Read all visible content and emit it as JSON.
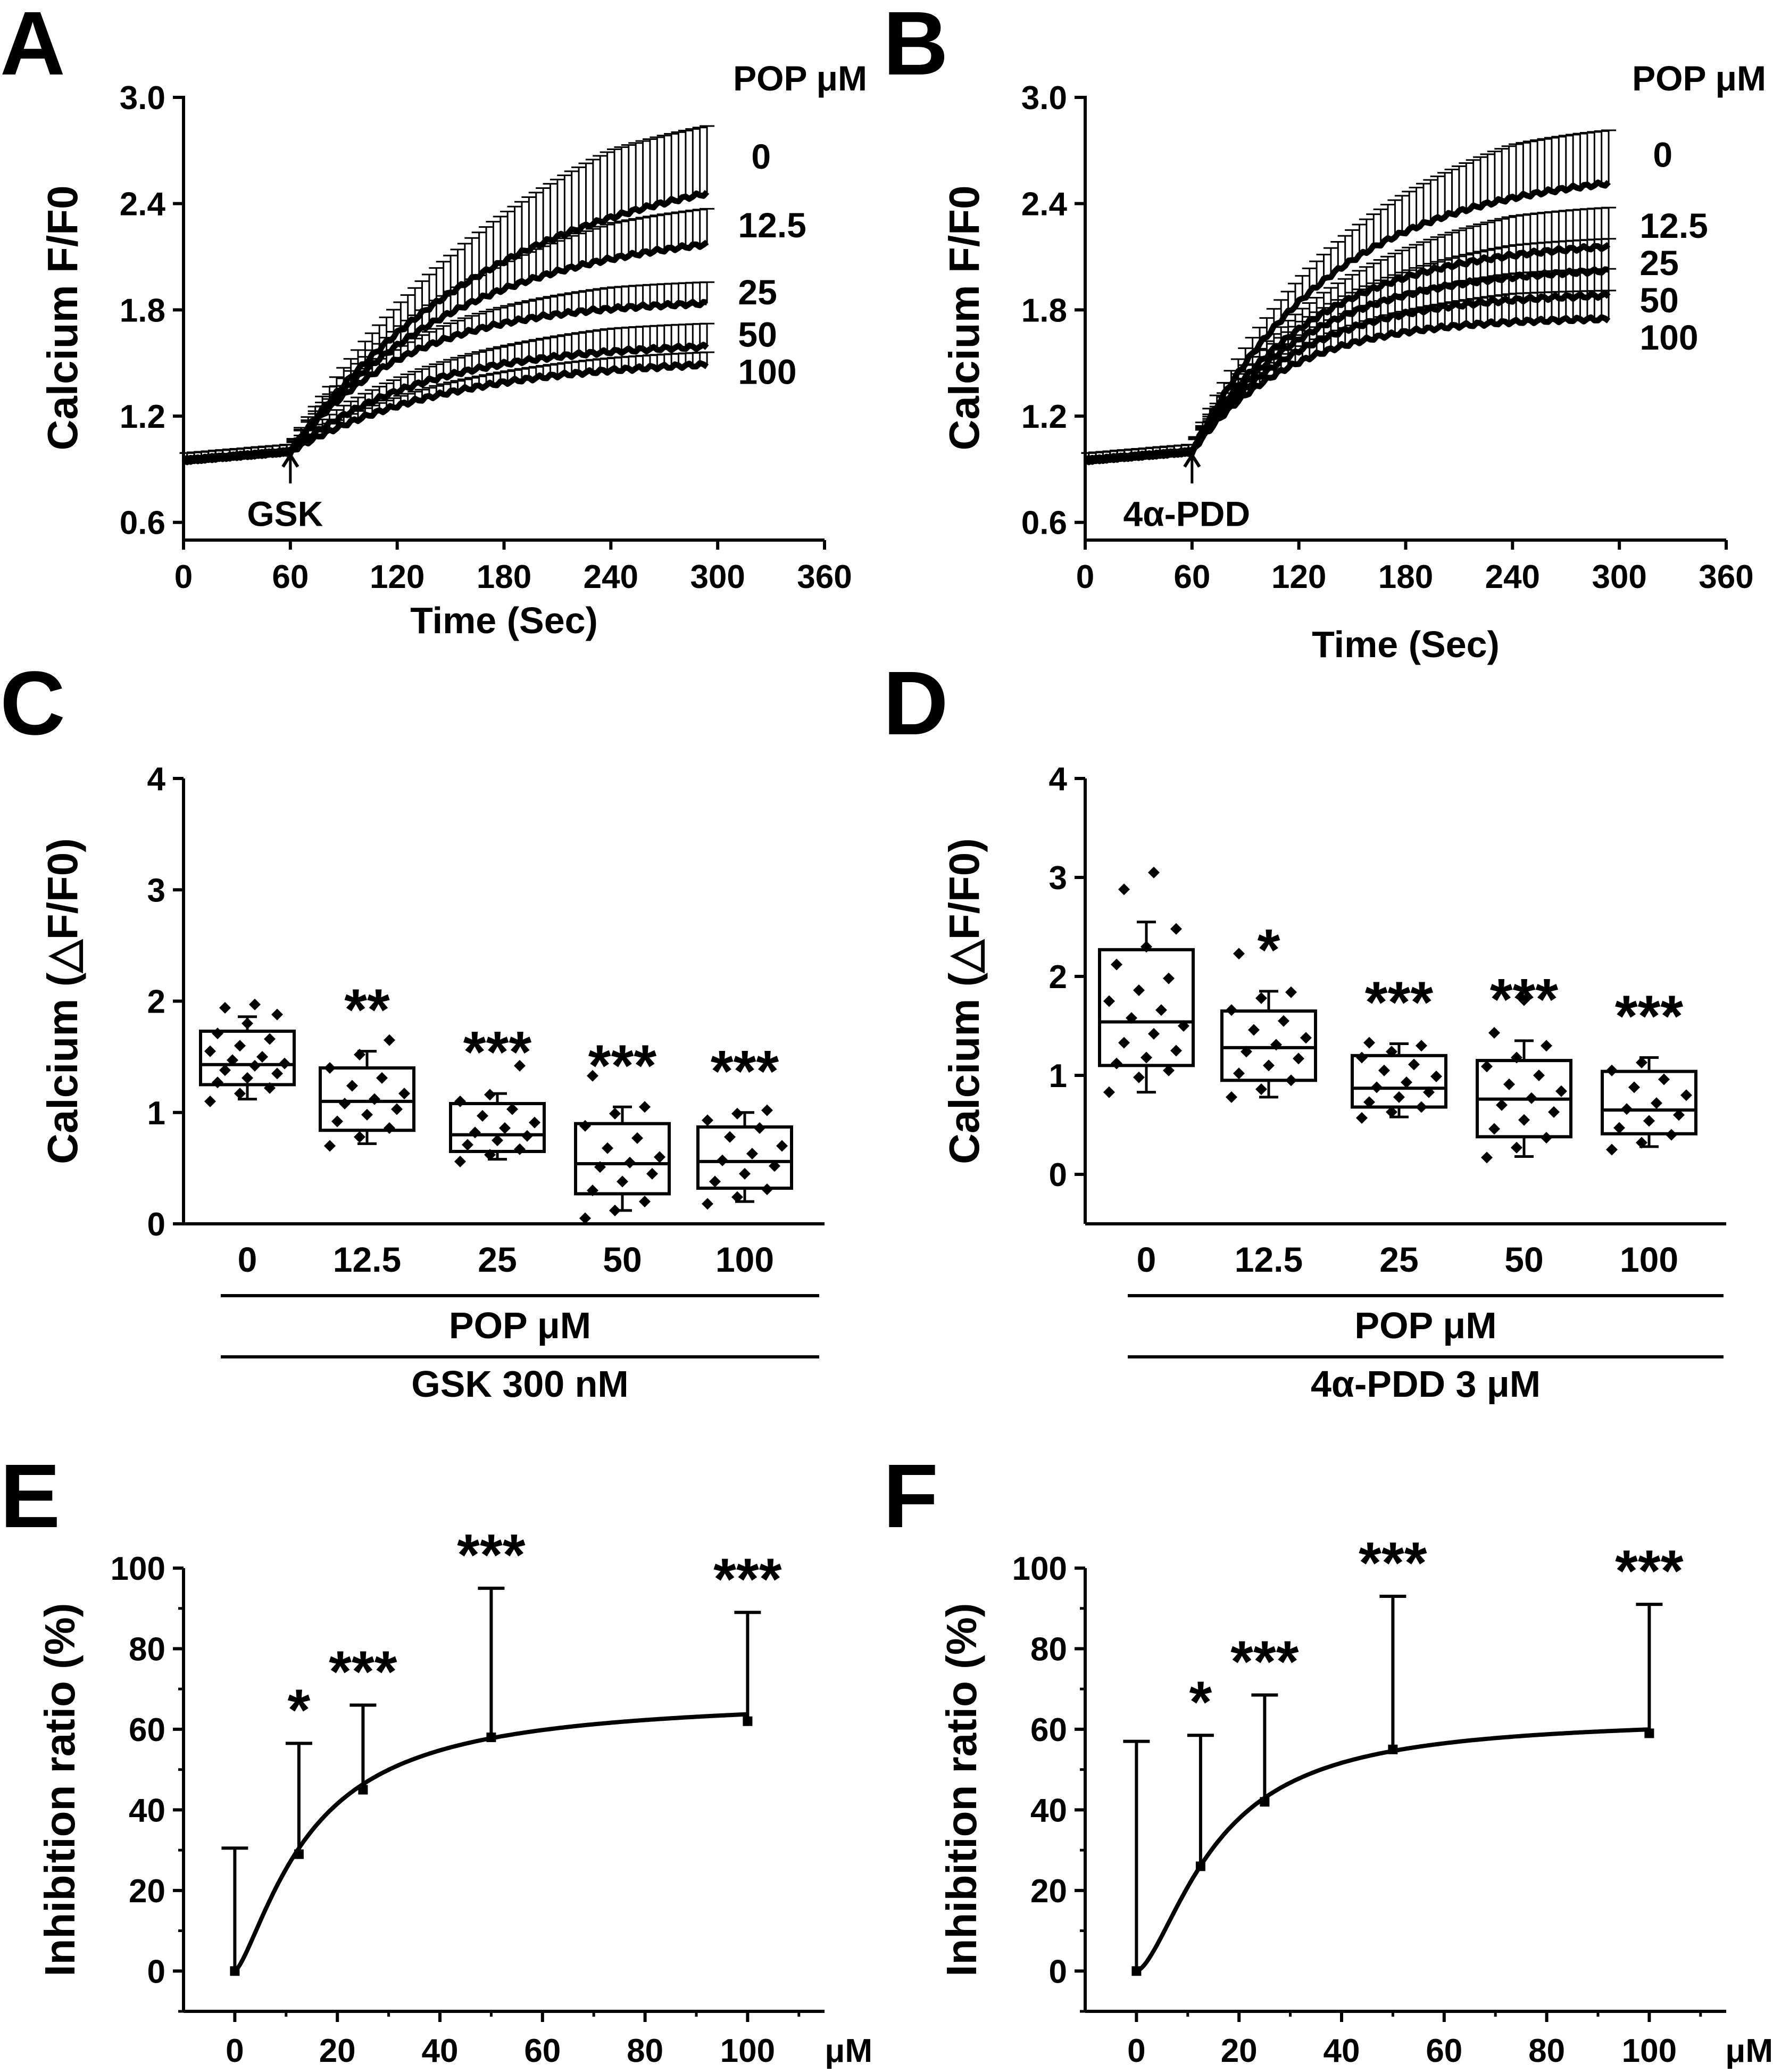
{
  "colors": {
    "ink": "#000000",
    "background": "#ffffff"
  },
  "chart_data": [
    {
      "panel": "A",
      "type": "line",
      "xlabel": "Time (Sec)",
      "ylabel": "Calcium F/F0",
      "xlim": [
        0,
        360
      ],
      "ylim": [
        0.5,
        3.0
      ],
      "xticks": [
        0,
        60,
        120,
        180,
        240,
        300,
        360
      ],
      "yticks": [
        0.6,
        1.2,
        1.8,
        2.4,
        3.0
      ],
      "ytick_labels": [
        "0.6",
        "1.2",
        "1.8",
        "2.4",
        "3.0"
      ],
      "legend_title": "POP μM",
      "stimulus": {
        "label": "GSK",
        "x": 60
      },
      "series": [
        {
          "name": "0",
          "end_label": "0",
          "baseline": 1.0,
          "plateau": 2.7,
          "tau": 120,
          "err_end": 0.38
        },
        {
          "name": "12.5",
          "end_label": "12.5",
          "baseline": 1.0,
          "plateau": 2.28,
          "tau": 95,
          "err_end": 0.2
        },
        {
          "name": "25",
          "end_label": "25",
          "baseline": 1.0,
          "plateau": 1.86,
          "tau": 65,
          "err_end": 0.12
        },
        {
          "name": "50",
          "end_label": "50",
          "baseline": 1.0,
          "plateau": 1.62,
          "tau": 75,
          "err_end": 0.13
        },
        {
          "name": "100",
          "end_label": "100",
          "baseline": 1.0,
          "plateau": 1.53,
          "tau": 90,
          "err_end": 0.07
        }
      ]
    },
    {
      "panel": "B",
      "type": "line",
      "xlabel": "Time (Sec)",
      "ylabel": "Calcium F/F0",
      "xlim": [
        0,
        360
      ],
      "ylim": [
        0.5,
        3.0
      ],
      "xticks": [
        0,
        60,
        120,
        180,
        240,
        300,
        360
      ],
      "yticks": [
        0.6,
        1.2,
        1.8,
        2.4,
        3.0
      ],
      "ytick_labels": [
        "0.6",
        "1.2",
        "1.8",
        "2.4",
        "3.0"
      ],
      "legend_title": "POP μM",
      "stimulus": {
        "label": "4α-PDD",
        "x": 60
      },
      "series": [
        {
          "name": "0",
          "end_label": "0",
          "baseline": 1.0,
          "plateau": 2.6,
          "tau": 80,
          "err_end": 0.3
        },
        {
          "name": "12.5",
          "end_label": "12.5",
          "baseline": 1.0,
          "plateau": 2.2,
          "tau": 70,
          "err_end": 0.22
        },
        {
          "name": "25",
          "end_label": "25",
          "baseline": 1.0,
          "plateau": 2.05,
          "tau": 65,
          "err_end": 0.18
        },
        {
          "name": "50",
          "end_label": "50",
          "baseline": 1.0,
          "plateau": 1.9,
          "tau": 60,
          "err_end": 0.15
        },
        {
          "name": "100",
          "end_label": "100",
          "baseline": 1.0,
          "plateau": 1.76,
          "tau": 55,
          "err_end": 0.16
        }
      ]
    },
    {
      "panel": "C",
      "type": "box",
      "ylabel": "Calcium (△F/F0)",
      "ylim": [
        0,
        4
      ],
      "yticks": [
        0,
        1,
        2,
        3,
        4
      ],
      "categories": [
        "0",
        "12.5",
        "25",
        "50",
        "100"
      ],
      "group_label": "POP  μM",
      "treatment_label": "GSK  300 nM",
      "boxes": [
        {
          "category": "0",
          "q1": 1.25,
          "median": 1.43,
          "q3": 1.73,
          "whisker_low": 1.12,
          "whisker_high": 1.86,
          "sig": "",
          "points": [
            1.1,
            1.17,
            1.22,
            1.27,
            1.31,
            1.35,
            1.38,
            1.42,
            1.44,
            1.47,
            1.5,
            1.55,
            1.6,
            1.66,
            1.71,
            1.8,
            1.88,
            1.94,
            1.97
          ]
        },
        {
          "category": "12.5",
          "q1": 0.84,
          "median": 1.1,
          "q3": 1.4,
          "whisker_low": 0.72,
          "whisker_high": 1.55,
          "sig": "**",
          "points": [
            0.7,
            0.78,
            0.86,
            0.92,
            0.98,
            1.03,
            1.08,
            1.12,
            1.17,
            1.24,
            1.31,
            1.4,
            1.52,
            1.65
          ]
        },
        {
          "category": "25",
          "q1": 0.65,
          "median": 0.8,
          "q3": 1.08,
          "whisker_low": 0.58,
          "whisker_high": 1.17,
          "sig": "***",
          "points": [
            0.56,
            0.62,
            0.67,
            0.71,
            0.75,
            0.79,
            0.82,
            0.86,
            0.91,
            0.97,
            1.03,
            1.1,
            1.16,
            1.42
          ]
        },
        {
          "category": "50",
          "q1": 0.27,
          "median": 0.54,
          "q3": 0.9,
          "whisker_low": 0.12,
          "whisker_high": 1.05,
          "sig": "***",
          "points": [
            0.05,
            0.12,
            0.2,
            0.3,
            0.38,
            0.45,
            0.51,
            0.55,
            0.6,
            0.68,
            0.77,
            0.88,
            0.99,
            1.05,
            1.33
          ]
        },
        {
          "category": "100",
          "q1": 0.32,
          "median": 0.56,
          "q3": 0.87,
          "whisker_low": 0.2,
          "whisker_high": 1.0,
          "sig": "***",
          "points": [
            0.18,
            0.24,
            0.31,
            0.38,
            0.45,
            0.52,
            0.57,
            0.63,
            0.7,
            0.78,
            0.86,
            0.93,
            0.99,
            1.02
          ]
        }
      ]
    },
    {
      "panel": "D",
      "type": "box",
      "ylabel": "Calcium (△F/F0)",
      "ylim": [
        -0.5,
        4
      ],
      "yticks": [
        0,
        1,
        2,
        3,
        4
      ],
      "categories": [
        "0",
        "12.5",
        "25",
        "50",
        "100"
      ],
      "group_label": "POP  μM",
      "treatment_label": "4α-PDD  3 μM",
      "boxes": [
        {
          "category": "0",
          "q1": 1.1,
          "median": 1.54,
          "q3": 2.27,
          "whisker_low": 0.83,
          "whisker_high": 2.55,
          "sig": "",
          "points": [
            0.83,
            0.98,
            1.05,
            1.12,
            1.18,
            1.25,
            1.33,
            1.42,
            1.5,
            1.58,
            1.66,
            1.75,
            1.86,
            1.98,
            2.12,
            2.3,
            2.48,
            2.88,
            3.05
          ]
        },
        {
          "category": "12.5",
          "q1": 0.95,
          "median": 1.28,
          "q3": 1.65,
          "whisker_low": 0.78,
          "whisker_high": 1.85,
          "sig": "*",
          "points": [
            0.78,
            0.86,
            0.95,
            1.02,
            1.1,
            1.17,
            1.24,
            1.31,
            1.38,
            1.46,
            1.55,
            1.66,
            1.78,
            1.84,
            2.23
          ]
        },
        {
          "category": "25",
          "q1": 0.68,
          "median": 0.87,
          "q3": 1.2,
          "whisker_low": 0.58,
          "whisker_high": 1.32,
          "sig": "***",
          "points": [
            0.57,
            0.63,
            0.68,
            0.73,
            0.78,
            0.83,
            0.88,
            0.93,
            0.99,
            1.05,
            1.11,
            1.18,
            1.24,
            1.3,
            1.33
          ]
        },
        {
          "category": "50",
          "q1": 0.38,
          "median": 0.76,
          "q3": 1.15,
          "whisker_low": 0.18,
          "whisker_high": 1.35,
          "sig": "***",
          "points": [
            0.17,
            0.27,
            0.37,
            0.46,
            0.55,
            0.63,
            0.7,
            0.77,
            0.84,
            0.91,
            1.0,
            1.09,
            1.18,
            1.3,
            1.43,
            1.76
          ]
        },
        {
          "category": "100",
          "q1": 0.41,
          "median": 0.65,
          "q3": 1.04,
          "whisker_low": 0.28,
          "whisker_high": 1.18,
          "sig": "***",
          "points": [
            0.25,
            0.32,
            0.4,
            0.47,
            0.54,
            0.6,
            0.66,
            0.72,
            0.8,
            0.88,
            0.96,
            1.05,
            1.13,
            1.69
          ]
        }
      ]
    },
    {
      "panel": "E",
      "type": "scatter",
      "xlabel": "μM",
      "ylabel": "Inhibition ratio (%)",
      "xlim": [
        -10,
        115
      ],
      "ylim": [
        -10,
        100
      ],
      "xticks": [
        0,
        20,
        40,
        60,
        80,
        100
      ],
      "yticks": [
        0,
        20,
        40,
        60,
        80,
        100
      ],
      "fit": {
        "model": "hill",
        "top": 68,
        "ec50": 14.5,
        "hill": 1.4
      },
      "points": [
        {
          "x": 0,
          "y": 0,
          "err": 30.5,
          "sig": ""
        },
        {
          "x": 12.5,
          "y": 29,
          "err": 27.5,
          "sig": "*"
        },
        {
          "x": 25,
          "y": 45,
          "err": 21,
          "sig": "***"
        },
        {
          "x": 50,
          "y": 58,
          "err": 37,
          "sig": "***"
        },
        {
          "x": 100,
          "y": 62,
          "err": 27,
          "sig": "***"
        }
      ]
    },
    {
      "panel": "F",
      "type": "scatter",
      "xlabel": "μM",
      "ylabel": "Inhibition ratio (%)",
      "xlim": [
        -10,
        115
      ],
      "ylim": [
        -10,
        100
      ],
      "xticks": [
        0,
        20,
        40,
        60,
        80,
        100
      ],
      "yticks": [
        0,
        20,
        40,
        60,
        80,
        100
      ],
      "fit": {
        "model": "hill",
        "top": 63,
        "ec50": 15.5,
        "hill": 1.6
      },
      "points": [
        {
          "x": 0,
          "y": 0,
          "err": 57,
          "sig": ""
        },
        {
          "x": 12.5,
          "y": 26,
          "err": 32.5,
          "sig": "*"
        },
        {
          "x": 25,
          "y": 42,
          "err": 26.5,
          "sig": "***"
        },
        {
          "x": 50,
          "y": 55,
          "err": 38,
          "sig": "***"
        },
        {
          "x": 100,
          "y": 59,
          "err": 32,
          "sig": "***"
        }
      ]
    }
  ]
}
